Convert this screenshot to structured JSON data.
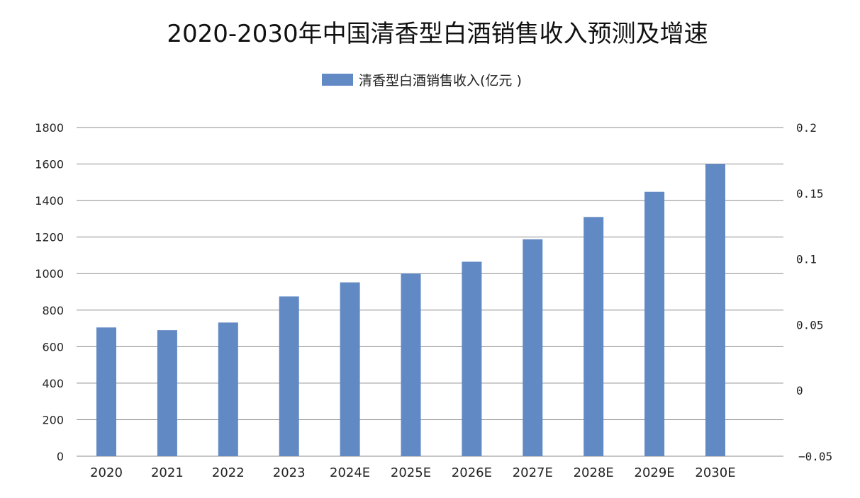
{
  "chart_data": {
    "type": "bar",
    "title": "2020-2030年中国清香型白酒销售收入预测及增速",
    "categories": [
      "2020",
      "2021",
      "2022",
      "2023",
      "2024E",
      "2025E",
      "2026E",
      "2027E",
      "2028E",
      "2029E",
      "2030E"
    ],
    "series": [
      {
        "name": "清香型白酒销售收入(亿元 )",
        "color": "#6189c4",
        "values": [
          705,
          690,
          732,
          875,
          952,
          1000,
          1065,
          1188,
          1310,
          1448,
          1600
        ]
      }
    ],
    "ylim": [
      0,
      1800
    ],
    "yticks": [
      "0",
      "200",
      "400",
      "600",
      "800",
      "1000",
      "1200",
      "1400",
      "1600",
      "1800"
    ],
    "y2lim": [
      -0.05,
      0.2
    ],
    "y2ticks": [
      "-0.05",
      "0",
      "0.05",
      "0.1",
      "0.15",
      "0.2"
    ],
    "grid": true,
    "legend_position": "top"
  }
}
